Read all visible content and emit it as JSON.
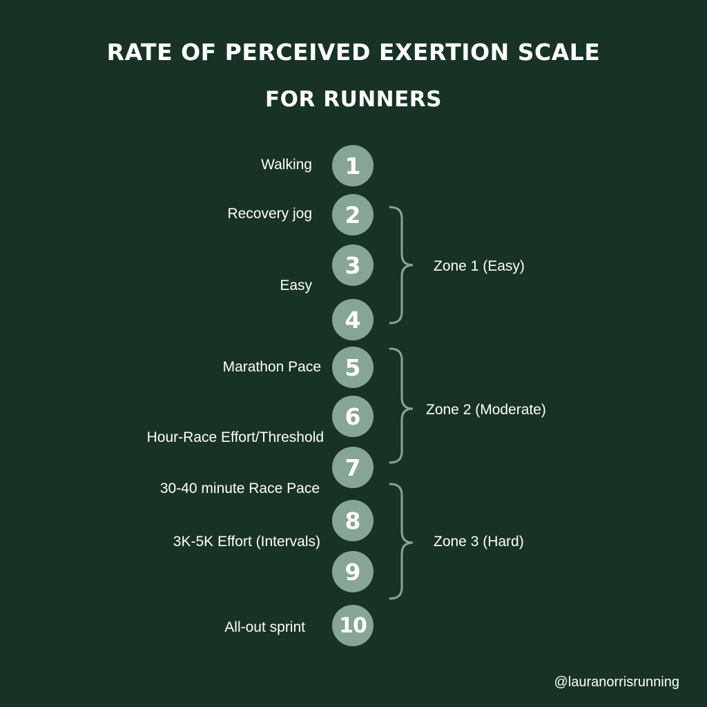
{
  "title": "RATE OF PERCEIVED EXERTION SCALE",
  "subtitle": "FOR RUNNERS",
  "levels": [
    {
      "number": "1",
      "label": "Walking"
    },
    {
      "number": "2",
      "label": "Recovery jog"
    },
    {
      "number": "3",
      "label": "Easy"
    },
    {
      "number": "4"
    },
    {
      "number": "5",
      "label": "Marathon Pace"
    },
    {
      "number": "6",
      "label": "Hour-Race Effort/Threshold"
    },
    {
      "number": "7"
    },
    {
      "number": "8",
      "label": "30-40 minute Race Pace"
    },
    {
      "number": "9",
      "label": "3K-5K Effort (Intervals)"
    },
    {
      "number": "10",
      "label": "All-out sprint"
    }
  ],
  "zones": [
    {
      "label": "Zone 1 (Easy)"
    },
    {
      "label": "Zone 2 (Moderate)"
    },
    {
      "label": "Zone 3 (Hard)"
    }
  ],
  "handle": "@lauranorrisrunning",
  "colors": {
    "background": "#183326",
    "circle": "#87a596",
    "brace": "#87a596",
    "text": "#ffffff"
  }
}
